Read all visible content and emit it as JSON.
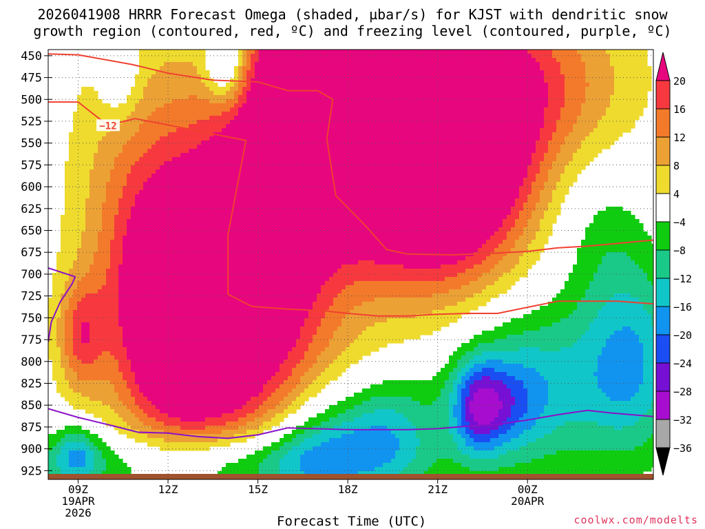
{
  "title_line1": "2026041908 HRRR Forecast Omega (shaded, µbar/s) for KJST with dendritic snow",
  "title_line2": "growth region (contoured, red, ºC) and freezing level (contoured, purple, ºC)",
  "xaxis_title": "Forecast Time (UTC)",
  "credit": "coolwx.com/modelts",
  "colors": {
    "frame": "#000000",
    "grid": "#555555",
    "dgz_contour": "#f04030",
    "freezing_contour": "#8a10c8",
    "ground": "#a0522d",
    "credit": "#e0325a"
  },
  "chart_data": {
    "type": "heatmap",
    "x_unit": "hours since 2026-04-19 08Z",
    "xlim": [
      0,
      20.2
    ],
    "y_unit": "hPa",
    "ylim": [
      935,
      443
    ],
    "y_ticks": [
      450,
      475,
      500,
      525,
      550,
      575,
      600,
      625,
      650,
      675,
      700,
      725,
      750,
      775,
      800,
      825,
      850,
      875,
      900,
      925
    ],
    "x_ticks": [
      {
        "x": 1,
        "lines": [
          "09Z",
          "19APR",
          "2026"
        ]
      },
      {
        "x": 4,
        "lines": [
          "12Z"
        ]
      },
      {
        "x": 7,
        "lines": [
          "15Z"
        ]
      },
      {
        "x": 10,
        "lines": [
          "18Z"
        ]
      },
      {
        "x": 13,
        "lines": [
          "21Z"
        ]
      },
      {
        "x": 16,
        "lines": [
          "00Z",
          "20APR"
        ]
      }
    ],
    "grid": true,
    "colorbar": {
      "labels": [
        "20",
        "16",
        "12",
        "8",
        "4",
        "−4",
        "−8",
        "−12",
        "−16",
        "−20",
        "−24",
        "−28",
        "−32",
        "−36"
      ],
      "bins": [
        {
          "from": 20,
          "to": 99,
          "color": "#e8067e"
        },
        {
          "from": 16,
          "to": 20,
          "color": "#f7393f"
        },
        {
          "from": 12,
          "to": 16,
          "color": "#f37a2a"
        },
        {
          "from": 8,
          "to": 12,
          "color": "#eca135"
        },
        {
          "from": 4,
          "to": 8,
          "color": "#eedb2e"
        },
        {
          "from": -4,
          "to": 4,
          "color": "#ffffff"
        },
        {
          "from": -8,
          "to": -4,
          "color": "#10cc10"
        },
        {
          "from": -12,
          "to": -8,
          "color": "#1ac988"
        },
        {
          "from": -16,
          "to": -12,
          "color": "#11c6c8"
        },
        {
          "from": -20,
          "to": -16,
          "color": "#1194f0"
        },
        {
          "from": -24,
          "to": -20,
          "color": "#1a4ef2"
        },
        {
          "from": -28,
          "to": -24,
          "color": "#7610d4"
        },
        {
          "from": -32,
          "to": -28,
          "color": "#a70dce"
        },
        {
          "from": -36,
          "to": -32,
          "color": "#a8a8a8"
        },
        {
          "from": -99,
          "to": -36,
          "color": "#000000"
        }
      ]
    },
    "omega_field": {
      "background": 1,
      "blobs": [
        {
          "x": 11.5,
          "p": 550,
          "sx": 2.6,
          "sp": 95,
          "a": 32
        },
        {
          "x": 6.5,
          "p": 700,
          "sx": 2.1,
          "sp": 140,
          "a": 30
        },
        {
          "x": 4.3,
          "p": 760,
          "sx": 1.4,
          "sp": 95,
          "a": 22
        },
        {
          "x": 8.8,
          "p": 470,
          "sx": 1.3,
          "sp": 75,
          "a": 24
        },
        {
          "x": 13.5,
          "p": 560,
          "sx": 1.9,
          "sp": 110,
          "a": 22
        },
        {
          "x": 1.1,
          "p": 770,
          "sx": 0.55,
          "sp": 45,
          "a": 14
        },
        {
          "x": 14.5,
          "p": 470,
          "sx": 2.6,
          "sp": 80,
          "a": 8
        },
        {
          "x": 2.8,
          "p": 620,
          "sx": 1.4,
          "sp": 140,
          "a": 9
        },
        {
          "x": 17.5,
          "p": 480,
          "sx": 1.8,
          "sp": 60,
          "a": 6
        },
        {
          "x": 2.4,
          "p": 470,
          "sx": 0.5,
          "sp": 40,
          "a": -8
        },
        {
          "x": 5.9,
          "p": 460,
          "sx": 0.45,
          "sp": 30,
          "a": -15
        },
        {
          "x": 6.4,
          "p": 920,
          "sx": 3.4,
          "sp": 30,
          "a": -16
        },
        {
          "x": 9.0,
          "p": 895,
          "sx": 1.2,
          "sp": 45,
          "a": -12
        },
        {
          "x": 11.3,
          "p": 880,
          "sx": 1.2,
          "sp": 45,
          "a": -14
        },
        {
          "x": 14.3,
          "p": 855,
          "sx": 0.55,
          "sp": 40,
          "a": -12
        },
        {
          "x": 16.0,
          "p": 830,
          "sx": 1.9,
          "sp": 70,
          "a": -16
        },
        {
          "x": 19.5,
          "p": 800,
          "sx": 1.2,
          "sp": 80,
          "a": -16
        },
        {
          "x": 18.4,
          "p": 650,
          "sx": 1.2,
          "sp": 60,
          "a": -6
        },
        {
          "x": 14.9,
          "p": 850,
          "sx": 0.9,
          "sp": 35,
          "a": -12
        },
        {
          "x": 1.0,
          "p": 905,
          "sx": 0.5,
          "sp": 22,
          "a": -10
        },
        {
          "x": 0.4,
          "p": 920,
          "sx": 1.3,
          "sp": 30,
          "a": -7
        }
      ]
    },
    "dgz_contours": [
      {
        "label": "−12",
        "label_at": [
          2.0,
          530
        ],
        "points": [
          [
            0,
            503
          ],
          [
            1.0,
            503
          ],
          [
            2.0,
            530
          ],
          [
            2.9,
            522
          ],
          [
            4.1,
            530
          ],
          [
            6.3,
            545
          ],
          [
            6.6,
            547
          ],
          [
            6.0,
            655
          ],
          [
            6.0,
            723
          ],
          [
            6.8,
            737
          ],
          [
            8.0,
            740
          ],
          [
            9.2,
            742
          ],
          [
            10.0,
            745
          ],
          [
            11.0,
            748
          ],
          [
            12.0,
            748
          ],
          [
            13.0,
            746
          ],
          [
            14.0,
            745
          ],
          [
            15.0,
            745
          ],
          [
            16.0,
            738
          ],
          [
            17.0,
            731
          ],
          [
            18.0,
            731
          ],
          [
            19.0,
            731
          ],
          [
            20.2,
            734
          ]
        ]
      },
      {
        "label": "",
        "label_at": null,
        "points": [
          [
            0,
            448
          ],
          [
            1.0,
            449
          ],
          [
            2.8,
            460
          ],
          [
            4.0,
            470
          ],
          [
            5.5,
            478
          ],
          [
            7.0,
            480
          ],
          [
            8.0,
            490
          ],
          [
            9.0,
            490
          ],
          [
            9.5,
            500
          ],
          [
            9.3,
            545
          ],
          [
            9.6,
            610
          ],
          [
            10.6,
            645
          ],
          [
            11.3,
            672
          ],
          [
            12.0,
            677
          ],
          [
            13.5,
            678
          ],
          [
            15.0,
            676
          ],
          [
            16.0,
            674
          ],
          [
            17.0,
            670
          ],
          [
            18.0,
            668
          ],
          [
            20.2,
            661
          ]
        ]
      }
    ],
    "freezing_contours": [
      {
        "label": "",
        "points": [
          [
            0,
            693
          ],
          [
            0.9,
            703
          ],
          [
            0.8,
            711
          ],
          [
            0.4,
            732
          ],
          [
            0.1,
            755
          ],
          [
            0,
            778
          ]
        ]
      },
      {
        "label": "",
        "points": [
          [
            0,
            854
          ],
          [
            1.0,
            864
          ],
          [
            2.2,
            874
          ],
          [
            3.0,
            881
          ],
          [
            4.0,
            882
          ],
          [
            5.0,
            886
          ],
          [
            6.0,
            888
          ],
          [
            7.0,
            884
          ],
          [
            8.0,
            876
          ],
          [
            10.0,
            878
          ],
          [
            12.0,
            878
          ],
          [
            13.0,
            877
          ],
          [
            14.0,
            874
          ],
          [
            15.0,
            872
          ],
          [
            16.0,
            867
          ],
          [
            17.0,
            861
          ],
          [
            18.0,
            856
          ],
          [
            18.8,
            859
          ],
          [
            20.2,
            863
          ]
        ]
      }
    ]
  }
}
